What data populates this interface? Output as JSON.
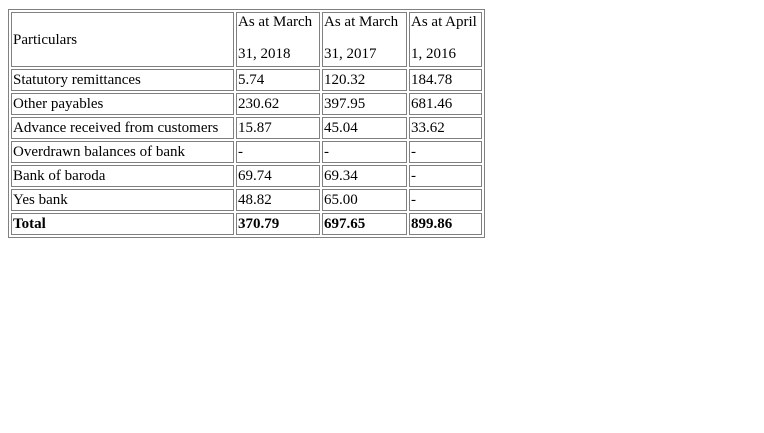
{
  "table": {
    "headers": {
      "particulars": "Particulars",
      "col1_line1": "As at March",
      "col1_line2": "31, 2018",
      "col2_line1": "As at March",
      "col2_line2": "31, 2017",
      "col3_line1": "As at April",
      "col3_line2": "1, 2016"
    },
    "rows": [
      {
        "label": "Statutory remittances",
        "v2018": "5.74",
        "v2017": "120.32",
        "v2016": "184.78"
      },
      {
        "label": "Other payables",
        "v2018": "230.62",
        "v2017": "397.95",
        "v2016": "681.46"
      },
      {
        "label": "Advance received from customers",
        "v2018": "15.87",
        "v2017": "45.04",
        "v2016": "33.62"
      },
      {
        "label": "Overdrawn balances of bank",
        "v2018": "-",
        "v2017": "-",
        "v2016": "-"
      },
      {
        "label": "Bank of baroda",
        "v2018": "69.74",
        "v2017": "69.34",
        "v2016": "-"
      },
      {
        "label": "Yes bank",
        "v2018": "48.82",
        "v2017": "65.00",
        "v2016": "-"
      }
    ],
    "total": {
      "label": "Total",
      "v2018": "370.79",
      "v2017": "697.65",
      "v2016": "899.86"
    }
  }
}
